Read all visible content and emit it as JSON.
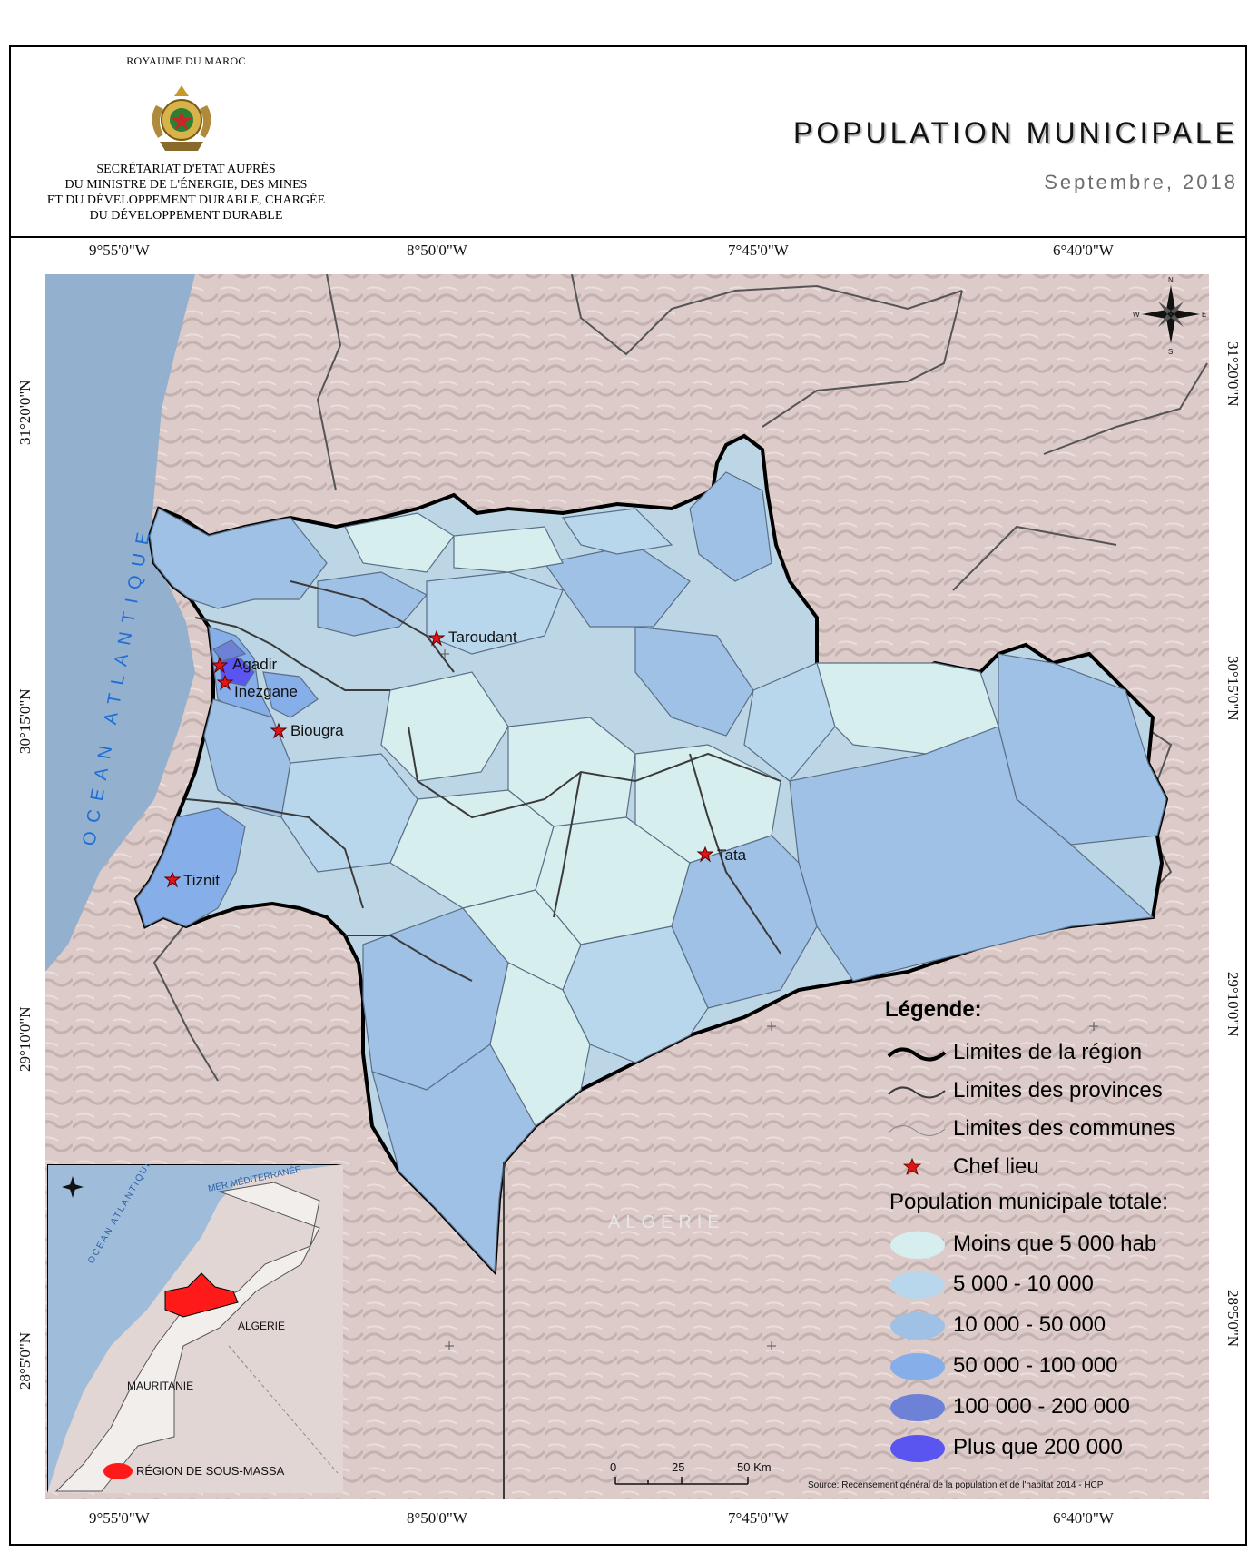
{
  "header": {
    "royaume": "ROYAUME DU MAROC",
    "secretariat": [
      "SECRÉTARIAT D'ETAT AUPRÈS",
      "DU MINISTRE DE L'ÉNERGIE, DES MINES",
      "ET DU DÉVELOPPEMENT DURABLE, CHARGÉE",
      "DU DÉVELOPPEMENT DURABLE"
    ],
    "title": "POPULATION MUNICIPALE",
    "date": "Septembre, 2018"
  },
  "grid": {
    "lon_labels": [
      "9°55'0\"W",
      "8°50'0\"W",
      "7°45'0\"W",
      "6°40'0\"W"
    ],
    "lat_labels": [
      "31°20'0\"N",
      "30°15'0\"N",
      "29°10'0\"N",
      "28°5'0\"N"
    ]
  },
  "map_labels": {
    "ocean": "OCEAN ATLANTIQUE",
    "algerie": "ALGERIE",
    "cities": [
      "Agadir",
      "Inezgane",
      "Biougra",
      "Taroudant",
      "Tiznit",
      "Tata"
    ]
  },
  "inset": {
    "sea": "MER MÉDITERRANÉE",
    "ocean": "OCEAN ATLANTIQUE",
    "algerie": "ALGERIE",
    "mauritanie": "MAURITANIE",
    "region_label": "RÉGION DE SOUS-MASSA"
  },
  "compass": {
    "n": "N",
    "s": "S",
    "e": "E",
    "w": "W"
  },
  "legend": {
    "title": "Légende:",
    "lines": [
      {
        "label": "Limites de la région"
      },
      {
        "label": "Limites des provinces"
      },
      {
        "label": "Limites des communes"
      },
      {
        "label": "Chef lieu"
      }
    ],
    "classes_title": "Population municipale totale:",
    "classes": [
      {
        "label": "Moins que 5 000 hab",
        "color": "#d6eeee"
      },
      {
        "label": "5 000 - 10 000",
        "color": "#b9d7ec"
      },
      {
        "label": "10 000 - 50 000",
        "color": "#9fc1e6"
      },
      {
        "label": "50 000 - 100 000",
        "color": "#86aee9"
      },
      {
        "label": "100 000 - 200 000",
        "color": "#6d82d6"
      },
      {
        "label": "Plus que 200 000",
        "color": "#5a55f0"
      }
    ]
  },
  "scale": {
    "labels": [
      "0",
      "25",
      "50 Km"
    ]
  },
  "source": "Source: Recensement général de la population et de l'habitat 2014 - HCP",
  "colors": {
    "ocean": "#93b0cf",
    "terrain": "#dcc9c7",
    "region_border": "#000000",
    "star": "#e01616"
  }
}
